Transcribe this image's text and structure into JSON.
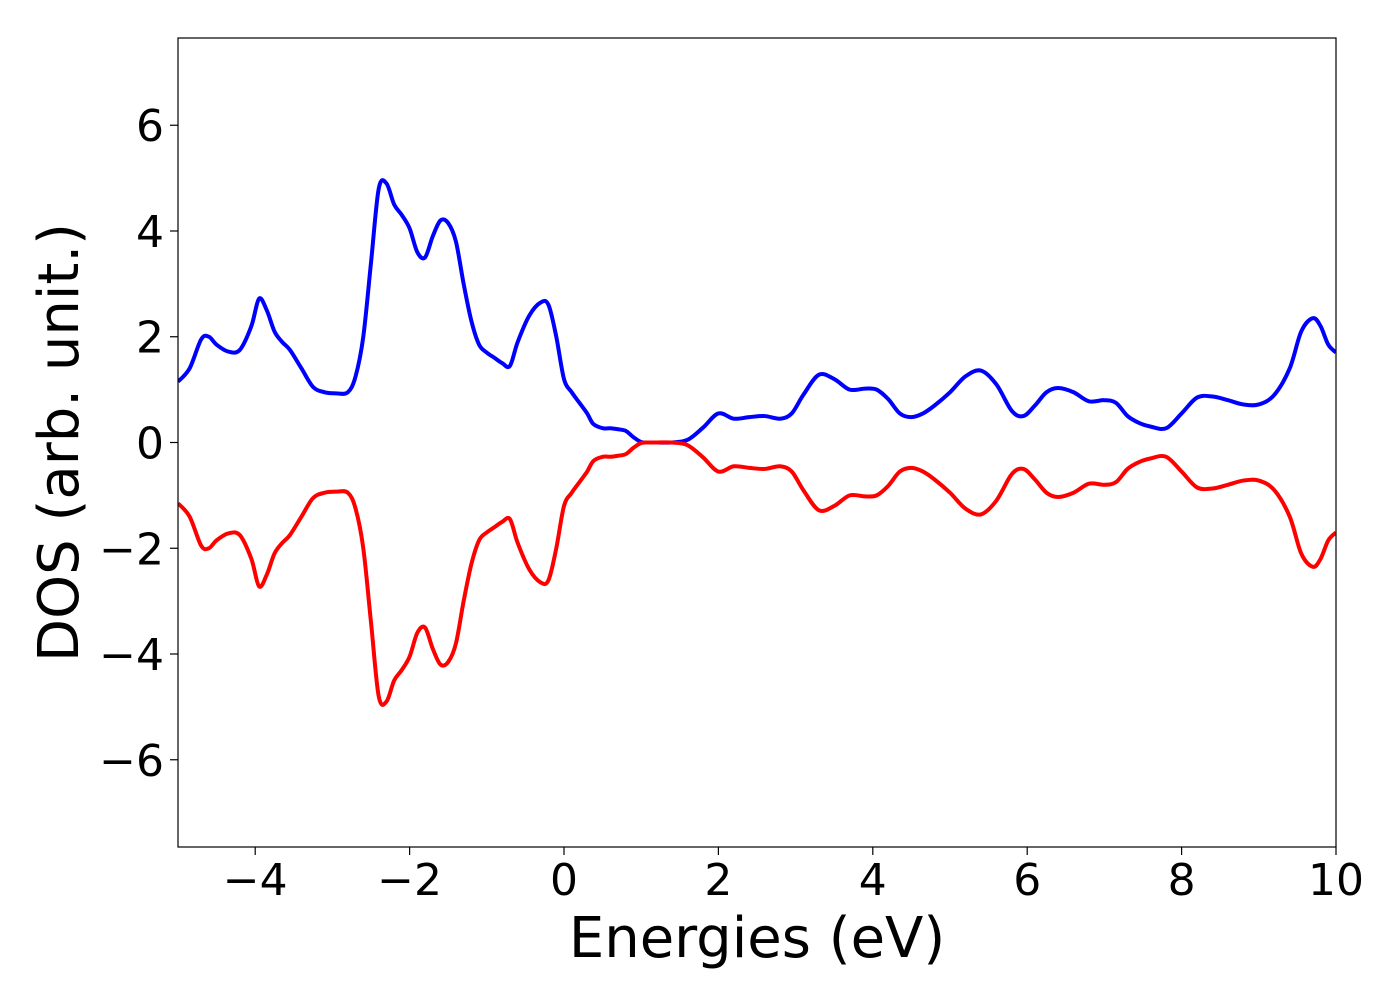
{
  "chart_data": {
    "type": "line",
    "title": "",
    "xlabel": "Energies (eV)",
    "ylabel": "DOS (arb. unit.)",
    "xlim": [
      -5,
      10
    ],
    "ylim": [
      -7.65,
      7.65
    ],
    "xticks": [
      -4,
      -2,
      0,
      2,
      4,
      6,
      8,
      10
    ],
    "yticks": [
      -6,
      -4,
      -2,
      0,
      2,
      4,
      6
    ],
    "xtick_labels": [
      "−4",
      "−2",
      "0",
      "2",
      "4",
      "6",
      "8",
      "10"
    ],
    "ytick_labels": [
      "−6",
      "−4",
      "−2",
      "0",
      "2",
      "4",
      "6"
    ],
    "grid": false,
    "legend": "none",
    "series": [
      {
        "color": "#0000ff",
        "x": [
          -5.0,
          -4.85,
          -4.7,
          -4.6,
          -4.5,
          -4.35,
          -4.2,
          -4.05,
          -3.95,
          -3.85,
          -3.75,
          -3.65,
          -3.55,
          -3.4,
          -3.25,
          -3.1,
          -2.95,
          -2.8,
          -2.7,
          -2.6,
          -2.5,
          -2.4,
          -2.3,
          -2.2,
          -2.1,
          -2.0,
          -1.9,
          -1.8,
          -1.7,
          -1.6,
          -1.5,
          -1.4,
          -1.3,
          -1.2,
          -1.1,
          -1.0,
          -0.9,
          -0.8,
          -0.7,
          -0.6,
          -0.45,
          -0.3,
          -0.2,
          -0.1,
          0.0,
          0.1,
          0.2,
          0.3,
          0.38,
          0.5,
          0.6,
          0.7,
          0.8,
          0.9,
          1.0,
          1.1,
          1.2,
          1.4,
          1.6,
          1.8,
          2.0,
          2.2,
          2.4,
          2.6,
          2.8,
          2.95,
          3.1,
          3.3,
          3.5,
          3.7,
          3.9,
          4.05,
          4.2,
          4.35,
          4.5,
          4.65,
          4.8,
          5.0,
          5.2,
          5.4,
          5.6,
          5.8,
          5.95,
          6.1,
          6.25,
          6.4,
          6.6,
          6.8,
          7.0,
          7.15,
          7.3,
          7.45,
          7.6,
          7.8,
          8.0,
          8.2,
          8.4,
          8.6,
          8.8,
          9.0,
          9.2,
          9.4,
          9.55,
          9.7,
          9.8,
          9.9,
          10.0
        ],
        "y": [
          1.15,
          1.4,
          1.95,
          2.0,
          1.85,
          1.72,
          1.75,
          2.2,
          2.72,
          2.5,
          2.1,
          1.9,
          1.75,
          1.4,
          1.05,
          0.95,
          0.93,
          0.95,
          1.25,
          2.0,
          3.4,
          4.8,
          4.9,
          4.5,
          4.3,
          4.05,
          3.6,
          3.5,
          3.9,
          4.2,
          4.15,
          3.8,
          3.0,
          2.3,
          1.85,
          1.7,
          1.6,
          1.5,
          1.45,
          1.9,
          2.4,
          2.65,
          2.6,
          2.0,
          1.2,
          0.95,
          0.75,
          0.55,
          0.35,
          0.27,
          0.27,
          0.25,
          0.22,
          0.1,
          0.01,
          0.0,
          0.0,
          0.0,
          0.05,
          0.28,
          0.55,
          0.45,
          0.48,
          0.5,
          0.45,
          0.55,
          0.9,
          1.28,
          1.2,
          1.0,
          1.02,
          1.0,
          0.82,
          0.55,
          0.48,
          0.55,
          0.7,
          0.95,
          1.25,
          1.36,
          1.1,
          0.6,
          0.5,
          0.7,
          0.95,
          1.03,
          0.95,
          0.78,
          0.8,
          0.75,
          0.5,
          0.37,
          0.3,
          0.27,
          0.55,
          0.85,
          0.87,
          0.8,
          0.72,
          0.72,
          0.9,
          1.4,
          2.1,
          2.35,
          2.2,
          1.85,
          1.7
        ]
      },
      {
        "color": "#ff0000",
        "x": [
          -5.0,
          -4.85,
          -4.7,
          -4.6,
          -4.5,
          -4.35,
          -4.2,
          -4.05,
          -3.95,
          -3.85,
          -3.75,
          -3.65,
          -3.55,
          -3.4,
          -3.25,
          -3.1,
          -2.95,
          -2.8,
          -2.7,
          -2.6,
          -2.5,
          -2.4,
          -2.3,
          -2.2,
          -2.1,
          -2.0,
          -1.9,
          -1.8,
          -1.7,
          -1.6,
          -1.5,
          -1.4,
          -1.3,
          -1.2,
          -1.1,
          -1.0,
          -0.9,
          -0.8,
          -0.7,
          -0.6,
          -0.45,
          -0.3,
          -0.2,
          -0.1,
          0.0,
          0.1,
          0.2,
          0.3,
          0.38,
          0.5,
          0.6,
          0.7,
          0.8,
          0.9,
          1.0,
          1.1,
          1.2,
          1.4,
          1.6,
          1.8,
          2.0,
          2.2,
          2.4,
          2.6,
          2.8,
          2.95,
          3.1,
          3.3,
          3.5,
          3.7,
          3.9,
          4.05,
          4.2,
          4.35,
          4.5,
          4.65,
          4.8,
          5.0,
          5.2,
          5.4,
          5.6,
          5.8,
          5.95,
          6.1,
          6.25,
          6.4,
          6.6,
          6.8,
          7.0,
          7.15,
          7.3,
          7.45,
          7.6,
          7.8,
          8.0,
          8.2,
          8.4,
          8.6,
          8.8,
          9.0,
          9.2,
          9.4,
          9.55,
          9.7,
          9.8,
          9.9,
          10.0
        ],
        "y": [
          -1.15,
          -1.4,
          -1.95,
          -2.0,
          -1.85,
          -1.72,
          -1.75,
          -2.2,
          -2.72,
          -2.5,
          -2.1,
          -1.9,
          -1.75,
          -1.4,
          -1.05,
          -0.95,
          -0.93,
          -0.95,
          -1.25,
          -2.0,
          -3.4,
          -4.8,
          -4.9,
          -4.5,
          -4.3,
          -4.05,
          -3.6,
          -3.5,
          -3.9,
          -4.2,
          -4.15,
          -3.8,
          -3.0,
          -2.3,
          -1.85,
          -1.7,
          -1.6,
          -1.5,
          -1.45,
          -1.9,
          -2.4,
          -2.65,
          -2.6,
          -2.0,
          -1.2,
          -0.95,
          -0.75,
          -0.55,
          -0.35,
          -0.27,
          -0.27,
          -0.25,
          -0.22,
          -0.1,
          -0.01,
          0.0,
          0.0,
          0.0,
          -0.05,
          -0.28,
          -0.55,
          -0.45,
          -0.48,
          -0.5,
          -0.45,
          -0.55,
          -0.9,
          -1.28,
          -1.2,
          -1.0,
          -1.02,
          -1.0,
          -0.82,
          -0.55,
          -0.48,
          -0.55,
          -0.7,
          -0.95,
          -1.25,
          -1.36,
          -1.1,
          -0.6,
          -0.5,
          -0.7,
          -0.95,
          -1.03,
          -0.95,
          -0.78,
          -0.8,
          -0.75,
          -0.5,
          -0.37,
          -0.3,
          -0.27,
          -0.55,
          -0.85,
          -0.87,
          -0.8,
          -0.72,
          -0.72,
          -0.9,
          -1.4,
          -2.1,
          -2.35,
          -2.2,
          -1.85,
          -1.7
        ]
      }
    ]
  }
}
